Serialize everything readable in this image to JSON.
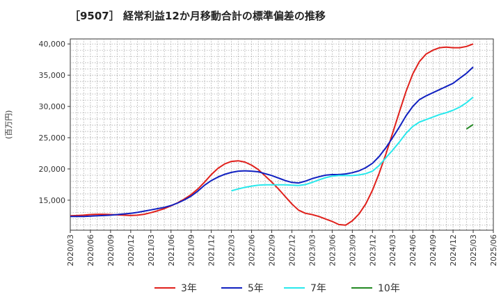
{
  "chart_data": {
    "type": "line",
    "title": "［9507］ 経常利益12か月移動合計の標準偏差の推移",
    "ylabel": "(百万円)",
    "xlabel": "",
    "ylim": [
      10200,
      40800
    ],
    "yticks": [
      15000,
      20000,
      25000,
      30000,
      35000,
      40000
    ],
    "ytick_labels": [
      "15,000",
      "20,000",
      "25,000",
      "30,000",
      "35,000",
      "40,000"
    ],
    "xticks": [
      "2020/03",
      "2020/06",
      "2020/09",
      "2020/12",
      "2021/03",
      "2021/06",
      "2021/09",
      "2021/12",
      "2022/03",
      "2022/06",
      "2022/09",
      "2022/12",
      "2023/03",
      "2023/06",
      "2023/09",
      "2023/12",
      "2024/03",
      "2024/06",
      "2024/09",
      "2024/12",
      "2025/03",
      "2025/06"
    ],
    "grid": true,
    "legend_position": "bottom",
    "x": [
      "2020/03",
      "2020/04",
      "2020/05",
      "2020/06",
      "2020/07",
      "2020/08",
      "2020/09",
      "2020/10",
      "2020/11",
      "2020/12",
      "2021/01",
      "2021/02",
      "2021/03",
      "2021/04",
      "2021/05",
      "2021/06",
      "2021/07",
      "2021/08",
      "2021/09",
      "2021/10",
      "2021/11",
      "2021/12",
      "2022/01",
      "2022/02",
      "2022/03",
      "2022/04",
      "2022/05",
      "2022/06",
      "2022/07",
      "2022/08",
      "2022/09",
      "2022/10",
      "2022/11",
      "2022/12",
      "2023/01",
      "2023/02",
      "2023/03",
      "2023/04",
      "2023/05",
      "2023/06",
      "2023/07",
      "2023/08",
      "2023/09",
      "2023/10",
      "2023/11",
      "2023/12",
      "2024/01",
      "2024/02",
      "2024/03",
      "2024/04",
      "2024/05",
      "2024/06",
      "2024/07",
      "2024/08",
      "2024/09",
      "2024/10",
      "2024/11",
      "2024/12",
      "2025/01",
      "2025/02",
      "2025/03"
    ],
    "series": [
      {
        "name": "3年",
        "color": "#e0201b",
        "values": [
          12500,
          12550,
          12600,
          12700,
          12750,
          12750,
          12700,
          12650,
          12600,
          12550,
          12600,
          12750,
          13000,
          13300,
          13650,
          14100,
          14600,
          15200,
          15900,
          16800,
          17900,
          19100,
          20100,
          20800,
          21200,
          21300,
          21100,
          20600,
          19900,
          18900,
          17900,
          16800,
          15600,
          14400,
          13400,
          12900,
          12700,
          12400,
          12000,
          11600,
          11100,
          11000,
          11700,
          12800,
          14400,
          16600,
          19300,
          22400,
          25700,
          29100,
          32400,
          35200,
          37200,
          38400,
          39000,
          39400,
          39500,
          39400,
          39400,
          39600,
          40000
        ]
      },
      {
        "name": "5年",
        "color": "#1020c0",
        "values": [
          12400,
          12400,
          12400,
          12450,
          12500,
          12550,
          12600,
          12700,
          12800,
          12900,
          13050,
          13250,
          13450,
          13650,
          13850,
          14150,
          14550,
          15050,
          15650,
          16450,
          17400,
          18150,
          18700,
          19150,
          19450,
          19650,
          19700,
          19650,
          19550,
          19250,
          18950,
          18550,
          18150,
          17850,
          17750,
          18050,
          18450,
          18750,
          19000,
          19100,
          19100,
          19200,
          19400,
          19700,
          20200,
          20900,
          22000,
          23400,
          25000,
          26700,
          28500,
          30000,
          31100,
          31700,
          32200,
          32700,
          33200,
          33700,
          34500,
          35300,
          36300
        ]
      },
      {
        "name": "7年",
        "color": "#28e8ec",
        "values": [
          null,
          null,
          null,
          null,
          null,
          null,
          null,
          null,
          null,
          null,
          null,
          null,
          null,
          null,
          null,
          null,
          null,
          null,
          null,
          null,
          null,
          null,
          null,
          null,
          16500,
          16800,
          17050,
          17250,
          17400,
          17450,
          17450,
          17450,
          17450,
          17400,
          17350,
          17500,
          17850,
          18250,
          18600,
          18850,
          18950,
          18950,
          18950,
          19050,
          19250,
          19650,
          20550,
          21800,
          23000,
          24300,
          25700,
          26800,
          27500,
          27900,
          28300,
          28700,
          29000,
          29400,
          29900,
          30600,
          31500
        ]
      },
      {
        "name": "10年",
        "color": "#228822",
        "values": [
          null,
          null,
          null,
          null,
          null,
          null,
          null,
          null,
          null,
          null,
          null,
          null,
          null,
          null,
          null,
          null,
          null,
          null,
          null,
          null,
          null,
          null,
          null,
          null,
          null,
          null,
          null,
          null,
          null,
          null,
          null,
          null,
          null,
          null,
          null,
          null,
          null,
          null,
          null,
          null,
          null,
          null,
          null,
          null,
          null,
          null,
          null,
          null,
          null,
          null,
          null,
          null,
          null,
          null,
          null,
          null,
          null,
          null,
          null,
          26400,
          27100
        ]
      }
    ]
  }
}
